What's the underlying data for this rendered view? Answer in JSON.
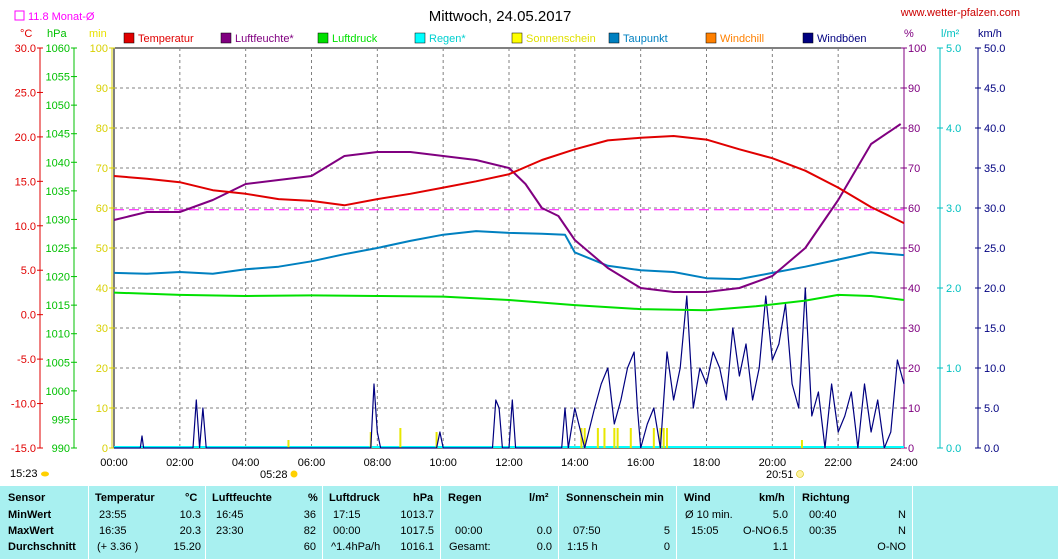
{
  "header": {
    "title": "Mittwoch, 24.05.2017",
    "website": "www.wetter-pfalzen.com",
    "monthly_avg": "11.8 Monat-Ø"
  },
  "units": {
    "left1": "°C",
    "left2": "hPa",
    "left3": "min",
    "right1": "%",
    "right2": "l/m²",
    "right3": "km/h"
  },
  "legend": [
    {
      "label": "Temperatur",
      "color": "#e00000"
    },
    {
      "label": "Luftfeuchte*",
      "color": "#800080"
    },
    {
      "label": "Luftdruck",
      "color": "#00e000"
    },
    {
      "label": "Regen*",
      "color": "#00ffff"
    },
    {
      "label": "Sonnenschein",
      "color": "#ffff00"
    },
    {
      "label": "Taupunkt",
      "color": "#0080c0"
    },
    {
      "label": "Windchill",
      "color": "#ff8000"
    },
    {
      "label": "Windböen",
      "color": "#000080"
    }
  ],
  "axes": {
    "temp_ticks": [
      "30.0",
      "25.0",
      "20.0",
      "15.0",
      "10.0",
      "5.0",
      "0.0",
      "-5.0",
      "-10.0",
      "-15.0"
    ],
    "press_ticks": [
      "1060",
      "1055",
      "1050",
      "1045",
      "1040",
      "1035",
      "1030",
      "1025",
      "1020",
      "1015",
      "1010",
      "1005",
      "1000",
      "995",
      "990"
    ],
    "sun_ticks": [
      "100",
      "90",
      "80",
      "70",
      "60",
      "50",
      "40",
      "30",
      "20",
      "10",
      "0"
    ],
    "hum_ticks": [
      "100",
      "90",
      "80",
      "70",
      "60",
      "50",
      "40",
      "30",
      "20",
      "10",
      "0"
    ],
    "rain_ticks": [
      "5.0",
      "4.0",
      "3.0",
      "2.0",
      "1.0",
      "0.0"
    ],
    "wind_ticks": [
      "50.0",
      "45.0",
      "40.0",
      "35.0",
      "30.0",
      "25.0",
      "20.0",
      "15.0",
      "10.0",
      "5.0",
      "0.0"
    ],
    "x_ticks": [
      "00:00",
      "02:00",
      "04:00",
      "06:00",
      "08:00",
      "10:00",
      "12:00",
      "14:00",
      "16:00",
      "18:00",
      "20:00",
      "22:00",
      "24:00"
    ],
    "sunrise": "05:28",
    "sunset": "20:51",
    "corner_time": "15:23"
  },
  "chart_data": {
    "type": "line",
    "x_range": [
      0,
      24
    ],
    "ylim_temp": [
      -15,
      30
    ],
    "ylim_pressure": [
      990,
      1060
    ],
    "ylim_sunshine_min": [
      0,
      100
    ],
    "ylim_humidity": [
      0,
      100
    ],
    "ylim_rain": [
      0,
      5
    ],
    "ylim_wind": [
      0,
      50
    ],
    "grid": true,
    "monthly_avg_temp": 11.8,
    "series": [
      {
        "name": "Temperatur",
        "axis": "temp",
        "points": [
          [
            0,
            15.6
          ],
          [
            1,
            15.3
          ],
          [
            2,
            14.9
          ],
          [
            3,
            14.0
          ],
          [
            4,
            13.6
          ],
          [
            5,
            13.0
          ],
          [
            6,
            12.8
          ],
          [
            7,
            12.3
          ],
          [
            8,
            13.0
          ],
          [
            9,
            13.6
          ],
          [
            10,
            14.3
          ],
          [
            11,
            15.0
          ],
          [
            12,
            15.8
          ],
          [
            13,
            17.4
          ],
          [
            14,
            18.6
          ],
          [
            15,
            19.6
          ],
          [
            16,
            19.9
          ],
          [
            17,
            20.1
          ],
          [
            18,
            19.7
          ],
          [
            19,
            18.6
          ],
          [
            20,
            17.6
          ],
          [
            21,
            16.2
          ],
          [
            22,
            14.3
          ],
          [
            23,
            12.1
          ],
          [
            24,
            10.3
          ]
        ]
      },
      {
        "name": "Luftfeuchte*",
        "axis": "humidity",
        "points": [
          [
            0,
            57
          ],
          [
            1,
            59
          ],
          [
            2,
            59
          ],
          [
            3,
            62
          ],
          [
            4,
            66
          ],
          [
            5,
            67
          ],
          [
            6,
            68
          ],
          [
            7,
            73
          ],
          [
            8,
            74
          ],
          [
            9,
            74
          ],
          [
            10,
            73
          ],
          [
            11,
            72
          ],
          [
            12,
            70
          ],
          [
            12.5,
            66
          ],
          [
            13,
            60
          ],
          [
            13.5,
            58
          ],
          [
            14,
            52
          ],
          [
            15,
            45
          ],
          [
            16,
            40
          ],
          [
            17,
            39
          ],
          [
            18,
            39
          ],
          [
            19,
            40
          ],
          [
            20,
            43
          ],
          [
            21,
            50
          ],
          [
            22,
            62
          ],
          [
            23,
            76
          ],
          [
            23.9,
            81
          ]
        ]
      },
      {
        "name": "Luftdruck",
        "axis": "pressure",
        "points": [
          [
            0,
            1017.2
          ],
          [
            2,
            1016.8
          ],
          [
            4,
            1016.6
          ],
          [
            6,
            1016.7
          ],
          [
            8,
            1016.6
          ],
          [
            10,
            1016.5
          ],
          [
            12,
            1015.9
          ],
          [
            14,
            1015.0
          ],
          [
            16,
            1014.3
          ],
          [
            18,
            1014.1
          ],
          [
            19.5,
            1014.8
          ],
          [
            21,
            1015.8
          ],
          [
            22,
            1016.8
          ],
          [
            23,
            1016.6
          ],
          [
            24,
            1015.9
          ]
        ]
      },
      {
        "name": "Taupunkt",
        "axis": "temp",
        "points": [
          [
            0,
            4.7
          ],
          [
            1,
            4.6
          ],
          [
            2,
            4.8
          ],
          [
            3,
            4.6
          ],
          [
            4,
            5.1
          ],
          [
            5,
            5.4
          ],
          [
            6,
            6.0
          ],
          [
            7,
            6.8
          ],
          [
            8,
            7.5
          ],
          [
            9,
            8.3
          ],
          [
            10,
            9.0
          ],
          [
            11,
            9.4
          ],
          [
            12,
            9.2
          ],
          [
            13,
            9.1
          ],
          [
            13.7,
            9.0
          ],
          [
            14,
            7.0
          ],
          [
            15,
            5.5
          ],
          [
            16,
            5.0
          ],
          [
            17,
            4.8
          ],
          [
            18,
            4.1
          ],
          [
            19,
            4.0
          ],
          [
            20,
            4.7
          ],
          [
            21,
            5.4
          ],
          [
            22,
            6.2
          ],
          [
            23,
            7.0
          ],
          [
            24,
            6.7
          ]
        ]
      },
      {
        "name": "Windböen",
        "axis": "wind",
        "points": [
          [
            0,
            0
          ],
          [
            0.8,
            0
          ],
          [
            0.85,
            1.5
          ],
          [
            0.9,
            0
          ],
          [
            2.4,
            0
          ],
          [
            2.5,
            6
          ],
          [
            2.6,
            0
          ],
          [
            2.7,
            5
          ],
          [
            2.8,
            0
          ],
          [
            7.8,
            0
          ],
          [
            7.9,
            8
          ],
          [
            8.0,
            2
          ],
          [
            8.1,
            0
          ],
          [
            9.8,
            0
          ],
          [
            9.9,
            2
          ],
          [
            10.0,
            0
          ],
          [
            11.5,
            0
          ],
          [
            11.6,
            6
          ],
          [
            11.7,
            5
          ],
          [
            11.8,
            0
          ],
          [
            12.0,
            0
          ],
          [
            12.1,
            6
          ],
          [
            12.2,
            0
          ],
          [
            13.6,
            0
          ],
          [
            13.7,
            5
          ],
          [
            13.8,
            0
          ],
          [
            14.0,
            5
          ],
          [
            14.3,
            0
          ],
          [
            14.6,
            5
          ],
          [
            14.8,
            8
          ],
          [
            15.0,
            10
          ],
          [
            15.2,
            3
          ],
          [
            15.4,
            6
          ],
          [
            15.6,
            10
          ],
          [
            15.8,
            12
          ],
          [
            15.9,
            5
          ],
          [
            16.0,
            0
          ],
          [
            16.2,
            3
          ],
          [
            16.4,
            5
          ],
          [
            16.6,
            0
          ],
          [
            16.8,
            12
          ],
          [
            17.0,
            6
          ],
          [
            17.2,
            10
          ],
          [
            17.4,
            19
          ],
          [
            17.6,
            5
          ],
          [
            17.8,
            10
          ],
          [
            18.0,
            8
          ],
          [
            18.2,
            12
          ],
          [
            18.4,
            10
          ],
          [
            18.6,
            6
          ],
          [
            18.8,
            15
          ],
          [
            19.0,
            9
          ],
          [
            19.2,
            13
          ],
          [
            19.4,
            6
          ],
          [
            19.6,
            10
          ],
          [
            19.8,
            19
          ],
          [
            20.0,
            11
          ],
          [
            20.2,
            13
          ],
          [
            20.4,
            18
          ],
          [
            20.6,
            8
          ],
          [
            20.8,
            5
          ],
          [
            21.0,
            20
          ],
          [
            21.2,
            4
          ],
          [
            21.4,
            7
          ],
          [
            21.6,
            0
          ],
          [
            21.8,
            8
          ],
          [
            22.0,
            2
          ],
          [
            22.2,
            4
          ],
          [
            22.4,
            7
          ],
          [
            22.6,
            0
          ],
          [
            22.8,
            8
          ],
          [
            23.0,
            2
          ],
          [
            23.2,
            6
          ],
          [
            23.4,
            0
          ],
          [
            23.6,
            2
          ],
          [
            23.8,
            11
          ],
          [
            24,
            8
          ]
        ]
      }
    ],
    "sunshine_bars_min": [
      [
        5.3,
        2
      ],
      [
        7.8,
        4
      ],
      [
        8.7,
        5
      ],
      [
        9.8,
        4
      ],
      [
        14.2,
        5
      ],
      [
        14.3,
        5
      ],
      [
        14.7,
        5
      ],
      [
        14.9,
        5
      ],
      [
        15.2,
        5
      ],
      [
        15.3,
        5
      ],
      [
        15.7,
        5
      ],
      [
        16.4,
        5
      ],
      [
        16.6,
        5
      ],
      [
        16.7,
        5
      ],
      [
        16.8,
        5
      ],
      [
        20.9,
        2
      ]
    ]
  },
  "stats": {
    "headers": {
      "sensor": "Sensor",
      "temp": "Temperatur",
      "temp_unit": "°C",
      "hum": "Luftfeuchte",
      "hum_unit": "%",
      "press": "Luftdruck",
      "press_unit": "hPa",
      "rain": "Regen",
      "rain_unit": "l/m²",
      "sun": "Sonnenschein min",
      "wind": "Wind",
      "wind_unit": "km/h",
      "dir": "Richtung"
    },
    "rows": [
      {
        "label": "MinWert",
        "temp_time": "23:55",
        "temp_val": "10.3",
        "hum_time": "16:45",
        "hum_val": "36",
        "press_time": "17:15",
        "press_val": "1013.7",
        "rain_time": "",
        "rain_val": "",
        "sun_time": "",
        "sun_val": "",
        "wind_time": "Ø 10 min.",
        "wind_dir": "",
        "wind_val": "5.0",
        "dir_time": "00:40",
        "dir_val": "N"
      },
      {
        "label": "MaxWert",
        "temp_time": "16:35",
        "temp_val": "20.3",
        "hum_time": "23:30",
        "hum_val": "82",
        "press_time": "00:00",
        "press_val": "1017.5",
        "rain_time": "00:00",
        "rain_val": "0.0",
        "sun_time": "07:50",
        "sun_val": "5",
        "wind_time": "15:05",
        "wind_dir": "O-NO",
        "wind_val": "6.5",
        "dir_time": "00:35",
        "dir_val": "N"
      },
      {
        "label": "Durchschnitt",
        "temp_time": "(+ 3.36 )",
        "temp_val": "15.20",
        "hum_time": "",
        "hum_val": "60",
        "press_time": "^1.4hPa/h",
        "press_val": "1016.1",
        "rain_time": "Gesamt:",
        "rain_val": "0.0",
        "sun_time": "1:15 h",
        "sun_val": "0",
        "wind_time": "",
        "wind_dir": "",
        "wind_val": "1.1",
        "dir_time": "",
        "dir_val": "O-NO"
      }
    ]
  }
}
